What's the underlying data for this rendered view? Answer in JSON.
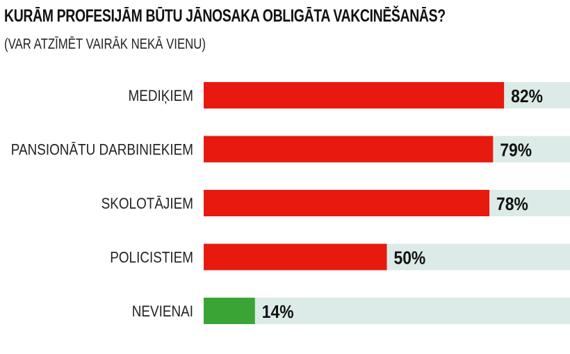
{
  "chart_data": {
    "type": "bar",
    "orientation": "horizontal",
    "title": "KURĀM PROFESIJĀM BŪTU JĀNOSAKA OBLIGĀTA VAKCINĒŠANĀS?",
    "subtitle": "(VAR ATZĪMĒT VAIRĀK NEKĀ VIENU)",
    "categories": [
      "MEDIĶIEM",
      "PANSIONĀTU DARBINIEKIEM",
      "SKOLOTĀJIEM",
      "POLICISTIEM",
      "NEVIENAI"
    ],
    "values": [
      82,
      79,
      78,
      50,
      14
    ],
    "value_labels": [
      "82%",
      "79%",
      "78%",
      "50%",
      "14%"
    ],
    "xlim": [
      0,
      100
    ],
    "bar_colors": [
      "#e8190f",
      "#e8190f",
      "#e8190f",
      "#e8190f",
      "#3aa535"
    ],
    "track_color": "#dcebe7",
    "grid": false,
    "legend": "none"
  }
}
